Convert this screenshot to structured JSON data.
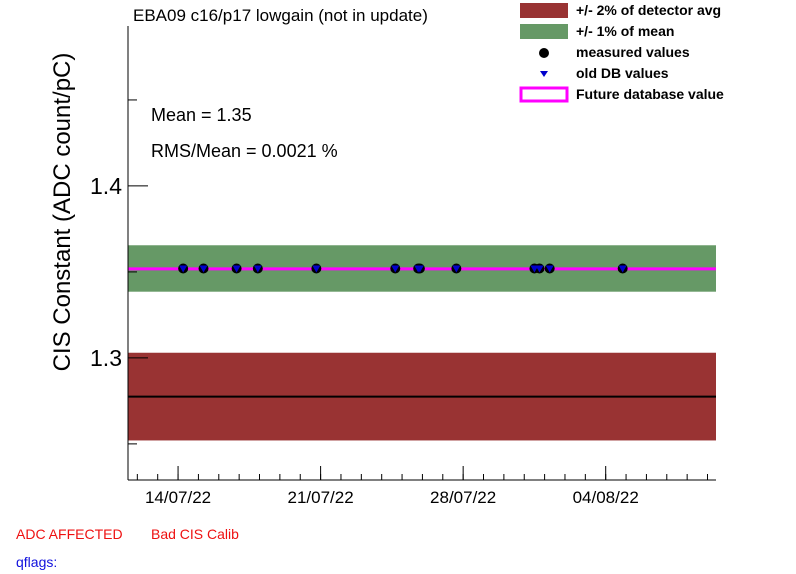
{
  "title": "EBA09 c16/p17 lowgain (not in update)",
  "stats": {
    "mean": "Mean = 1.35",
    "rms": "RMS/Mean = 0.0021 %"
  },
  "footer": {
    "adc_affected": "ADC AFFECTED",
    "bad_cis": "Bad CIS Calib",
    "qflags": "qflags:"
  },
  "legend": [
    {
      "label": "+/- 2% of detector avg",
      "symbol": "box",
      "color": "#993333"
    },
    {
      "label": "+/- 1% of mean",
      "symbol": "box",
      "color": "#669966"
    },
    {
      "label": "measured values",
      "symbol": "circle",
      "color": "#000000"
    },
    {
      "label": "old DB values",
      "symbol": "triangle",
      "color": "#0000cc"
    },
    {
      "label": "Future database value",
      "symbol": "line",
      "color": "#ff00ff"
    }
  ],
  "chart_data": {
    "type": "scatter",
    "title": "EBA09 c16/p17 lowgain (not in update)",
    "ylabel": "CIS Constant (ADC count/pC)",
    "xlabel": "",
    "x_ticks": [
      "2022-07-14",
      "2022-07-21",
      "2022-07-28",
      "2022-08-04"
    ],
    "x_tick_labels": [
      "14/07/22",
      "21/07/22",
      "28/07/22",
      "04/08/22"
    ],
    "xlim": [
      "2022-07-11 13:00",
      "2022-08-09 10:00"
    ],
    "y_ticks": [
      1.3,
      1.4
    ],
    "y_tick_labels": [
      "1.3",
      "1.4"
    ],
    "ylim": [
      1.229,
      1.493
    ],
    "detector_avg": 1.2775,
    "detector_band": [
      1.252,
      1.303
    ],
    "mean_band": [
      1.3385,
      1.3655
    ],
    "future_db_value": 1.3518,
    "series": [
      {
        "name": "measured values",
        "marker": "circle",
        "color": "#000000",
        "x": [
          "2022-07-14 06:00",
          "2022-07-15 06:00",
          "2022-07-16 21:00",
          "2022-07-17 22:00",
          "2022-07-20 19:00",
          "2022-07-24 16:00",
          "2022-07-25 19:00",
          "2022-07-25 21:00",
          "2022-07-27 16:00",
          "2022-07-31 12:00",
          "2022-07-31 18:00",
          "2022-08-01 06:00",
          "2022-08-04 20:00"
        ],
        "y": [
          1.352,
          1.352,
          1.352,
          1.352,
          1.352,
          1.352,
          1.352,
          1.352,
          1.352,
          1.352,
          1.352,
          1.352,
          1.352
        ]
      },
      {
        "name": "old DB values",
        "marker": "triangle",
        "color": "#0000cc",
        "x": [
          "2022-07-14 06:00",
          "2022-07-15 06:00",
          "2022-07-16 21:00",
          "2022-07-17 22:00",
          "2022-07-20 19:00",
          "2022-07-24 16:00",
          "2022-07-25 19:00",
          "2022-07-25 21:00",
          "2022-07-27 16:00",
          "2022-07-31 12:00",
          "2022-07-31 18:00",
          "2022-08-01 06:00",
          "2022-08-04 20:00"
        ],
        "y": [
          1.352,
          1.352,
          1.352,
          1.352,
          1.352,
          1.352,
          1.352,
          1.352,
          1.352,
          1.352,
          1.352,
          1.352,
          1.352
        ]
      }
    ]
  }
}
